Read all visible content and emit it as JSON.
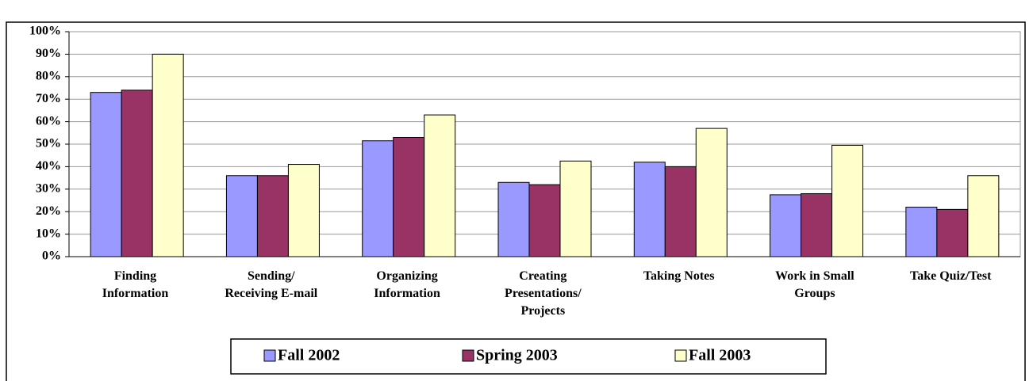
{
  "chart_data": {
    "type": "bar",
    "categories": [
      "Finding\nInformation",
      "Sending/\nReceiving E-mail",
      "Organizing\nInformation",
      "Creating\nPresentations/\nProjects",
      "Taking Notes",
      "Work in Small\nGroups",
      "Take Quiz/Test"
    ],
    "series": [
      {
        "name": "Fall 2002",
        "color": "#9999ff",
        "values": [
          73,
          36,
          51.5,
          33,
          42,
          27.5,
          22
        ]
      },
      {
        "name": "Spring 2003",
        "color": "#993366",
        "values": [
          74,
          36,
          53,
          32,
          40,
          28,
          21
        ]
      },
      {
        "name": "Fall 2003",
        "color": "#ffffcc",
        "values": [
          90,
          41,
          63,
          42.5,
          57,
          49.5,
          36
        ]
      }
    ],
    "ylim": [
      0,
      100
    ],
    "yticks": [
      {
        "value": 0,
        "label": "0%"
      },
      {
        "value": 10,
        "label": "10%"
      },
      {
        "value": 20,
        "label": "20%"
      },
      {
        "value": 30,
        "label": "30%"
      },
      {
        "value": 40,
        "label": "40%"
      },
      {
        "value": 50,
        "label": "50%"
      },
      {
        "value": 60,
        "label": "60%"
      },
      {
        "value": 70,
        "label": "70%"
      },
      {
        "value": 80,
        "label": "80%"
      },
      {
        "value": 90,
        "label": "90%"
      },
      {
        "value": 100,
        "label": "100%"
      }
    ],
    "grid": true,
    "legend": "bottom"
  }
}
